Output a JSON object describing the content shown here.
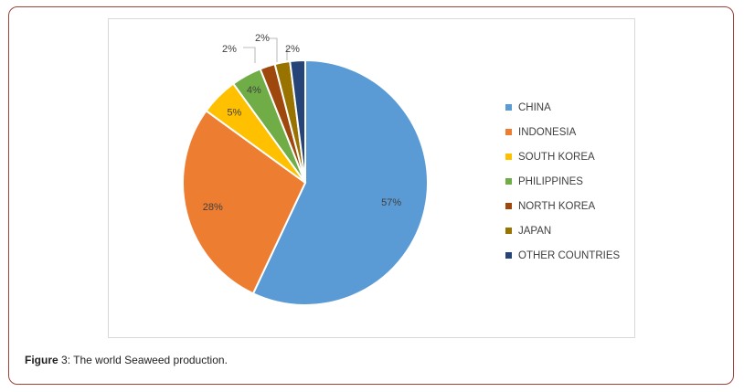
{
  "chart_data": {
    "type": "pie",
    "title": "",
    "slices": [
      {
        "label": "CHINA",
        "value": 57,
        "value_label": "57%",
        "color": "#5b9bd5"
      },
      {
        "label": "INDONESIA",
        "value": 28,
        "value_label": "28%",
        "color": "#ed7d31"
      },
      {
        "label": "SOUTH KOREA",
        "value": 5,
        "value_label": "5%",
        "color": "#ffc000"
      },
      {
        "label": "PHILIPPINES",
        "value": 4,
        "value_label": "4%",
        "color": "#70ad47"
      },
      {
        "label": "NORTH KOREA",
        "value": 2,
        "value_label": "2%",
        "color": "#9e480e"
      },
      {
        "label": "JAPAN",
        "value": 2,
        "value_label": "2%",
        "color": "#997300"
      },
      {
        "label": "OTHER COUNTRIES",
        "value": 2,
        "value_label": "2%",
        "color": "#264478"
      }
    ],
    "legend_position": "right"
  },
  "caption": {
    "label": "Figure",
    "number": " 3",
    "text": ": The world Seaweed production."
  },
  "colors": {
    "frame_border": "#a0413b",
    "chart_border": "#d9d9d9"
  }
}
